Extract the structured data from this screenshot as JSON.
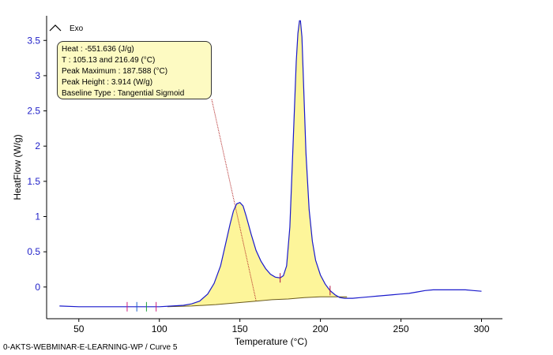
{
  "chart_data": {
    "type": "line",
    "xlabel": "Temperature (°C)",
    "ylabel": "HeatFlow (W/g)",
    "xlim": [
      30,
      313
    ],
    "ylim": [
      -0.45,
      3.85
    ],
    "x_ticks": [
      50,
      100,
      150,
      200,
      250,
      300
    ],
    "y_ticks": [
      0,
      0.5,
      1,
      1.5,
      2,
      2.5,
      3,
      3.5
    ],
    "y_tick_labels": [
      "0",
      "0.5",
      "1",
      "1.5",
      "2",
      "2.5",
      "3",
      "3.5"
    ],
    "exo_label": "Exo",
    "series": [
      {
        "x": [
          38,
          50,
          60,
          70,
          80,
          90,
          100,
          108,
          115,
          120,
          125,
          130,
          134,
          138,
          141,
          144,
          146,
          148,
          150,
          152,
          154,
          157,
          160,
          163,
          166,
          169,
          172,
          175,
          177,
          179,
          181,
          183,
          185,
          186,
          187,
          187.6,
          188.5,
          189.5,
          191,
          193,
          195,
          197,
          200,
          203,
          206,
          209,
          212,
          215,
          220,
          225,
          230,
          235,
          240,
          245,
          250,
          255,
          260,
          265,
          270,
          275,
          280,
          285,
          290,
          295,
          300
        ],
        "y": [
          -0.27,
          -0.28,
          -0.28,
          -0.28,
          -0.28,
          -0.28,
          -0.28,
          -0.27,
          -0.26,
          -0.24,
          -0.2,
          -0.1,
          0.05,
          0.3,
          0.6,
          0.9,
          1.08,
          1.18,
          1.2,
          1.15,
          1.0,
          0.75,
          0.52,
          0.37,
          0.26,
          0.18,
          0.14,
          0.13,
          0.16,
          0.3,
          0.85,
          2.0,
          3.2,
          3.6,
          3.78,
          3.78,
          3.55,
          2.9,
          1.9,
          1.1,
          0.65,
          0.38,
          0.17,
          0.04,
          -0.05,
          -0.11,
          -0.15,
          -0.16,
          -0.16,
          -0.15,
          -0.14,
          -0.13,
          -0.12,
          -0.11,
          -0.1,
          -0.09,
          -0.07,
          -0.05,
          -0.04,
          -0.04,
          -0.04,
          -0.04,
          -0.04,
          -0.05,
          -0.06
        ]
      }
    ],
    "baseline": {
      "x": [
        105,
        120,
        135,
        150,
        160,
        170,
        180,
        190,
        200,
        210,
        216.5
      ],
      "y": [
        -0.28,
        -0.27,
        -0.25,
        -0.22,
        -0.2,
        -0.18,
        -0.17,
        -0.15,
        -0.14,
        -0.14,
        -0.14
      ]
    },
    "markers": [
      {
        "x": 80,
        "color": "#cc2080"
      },
      {
        "x": 86,
        "color": "#2060cc"
      },
      {
        "x": 92,
        "color": "#20a040"
      },
      {
        "x": 98,
        "color": "#cc2080"
      },
      {
        "x": 175,
        "color": "#b01040"
      },
      {
        "x": 206,
        "color": "#b01040"
      }
    ],
    "annotation": {
      "lines": [
        "Heat :  -551.636 (J/g)",
        "T : 105.13 and 216.49 (°C)",
        "Peak Maximum :  187.588 (°C)",
        "Peak Height :  3.914 (W/g)",
        "Baseline Type :  Tangential Sigmoid"
      ],
      "pointer_to": {
        "x": 160,
        "y": -0.19
      }
    },
    "colors": {
      "curve": "#1a1acc",
      "fill": "#fdf59a",
      "baseline": "#6a5a1a",
      "axis": "#000000",
      "pointer": "#b02020"
    }
  },
  "footer": "0-AKTS-WEBMINAR-E-LEARNING-WP / Curve 5"
}
